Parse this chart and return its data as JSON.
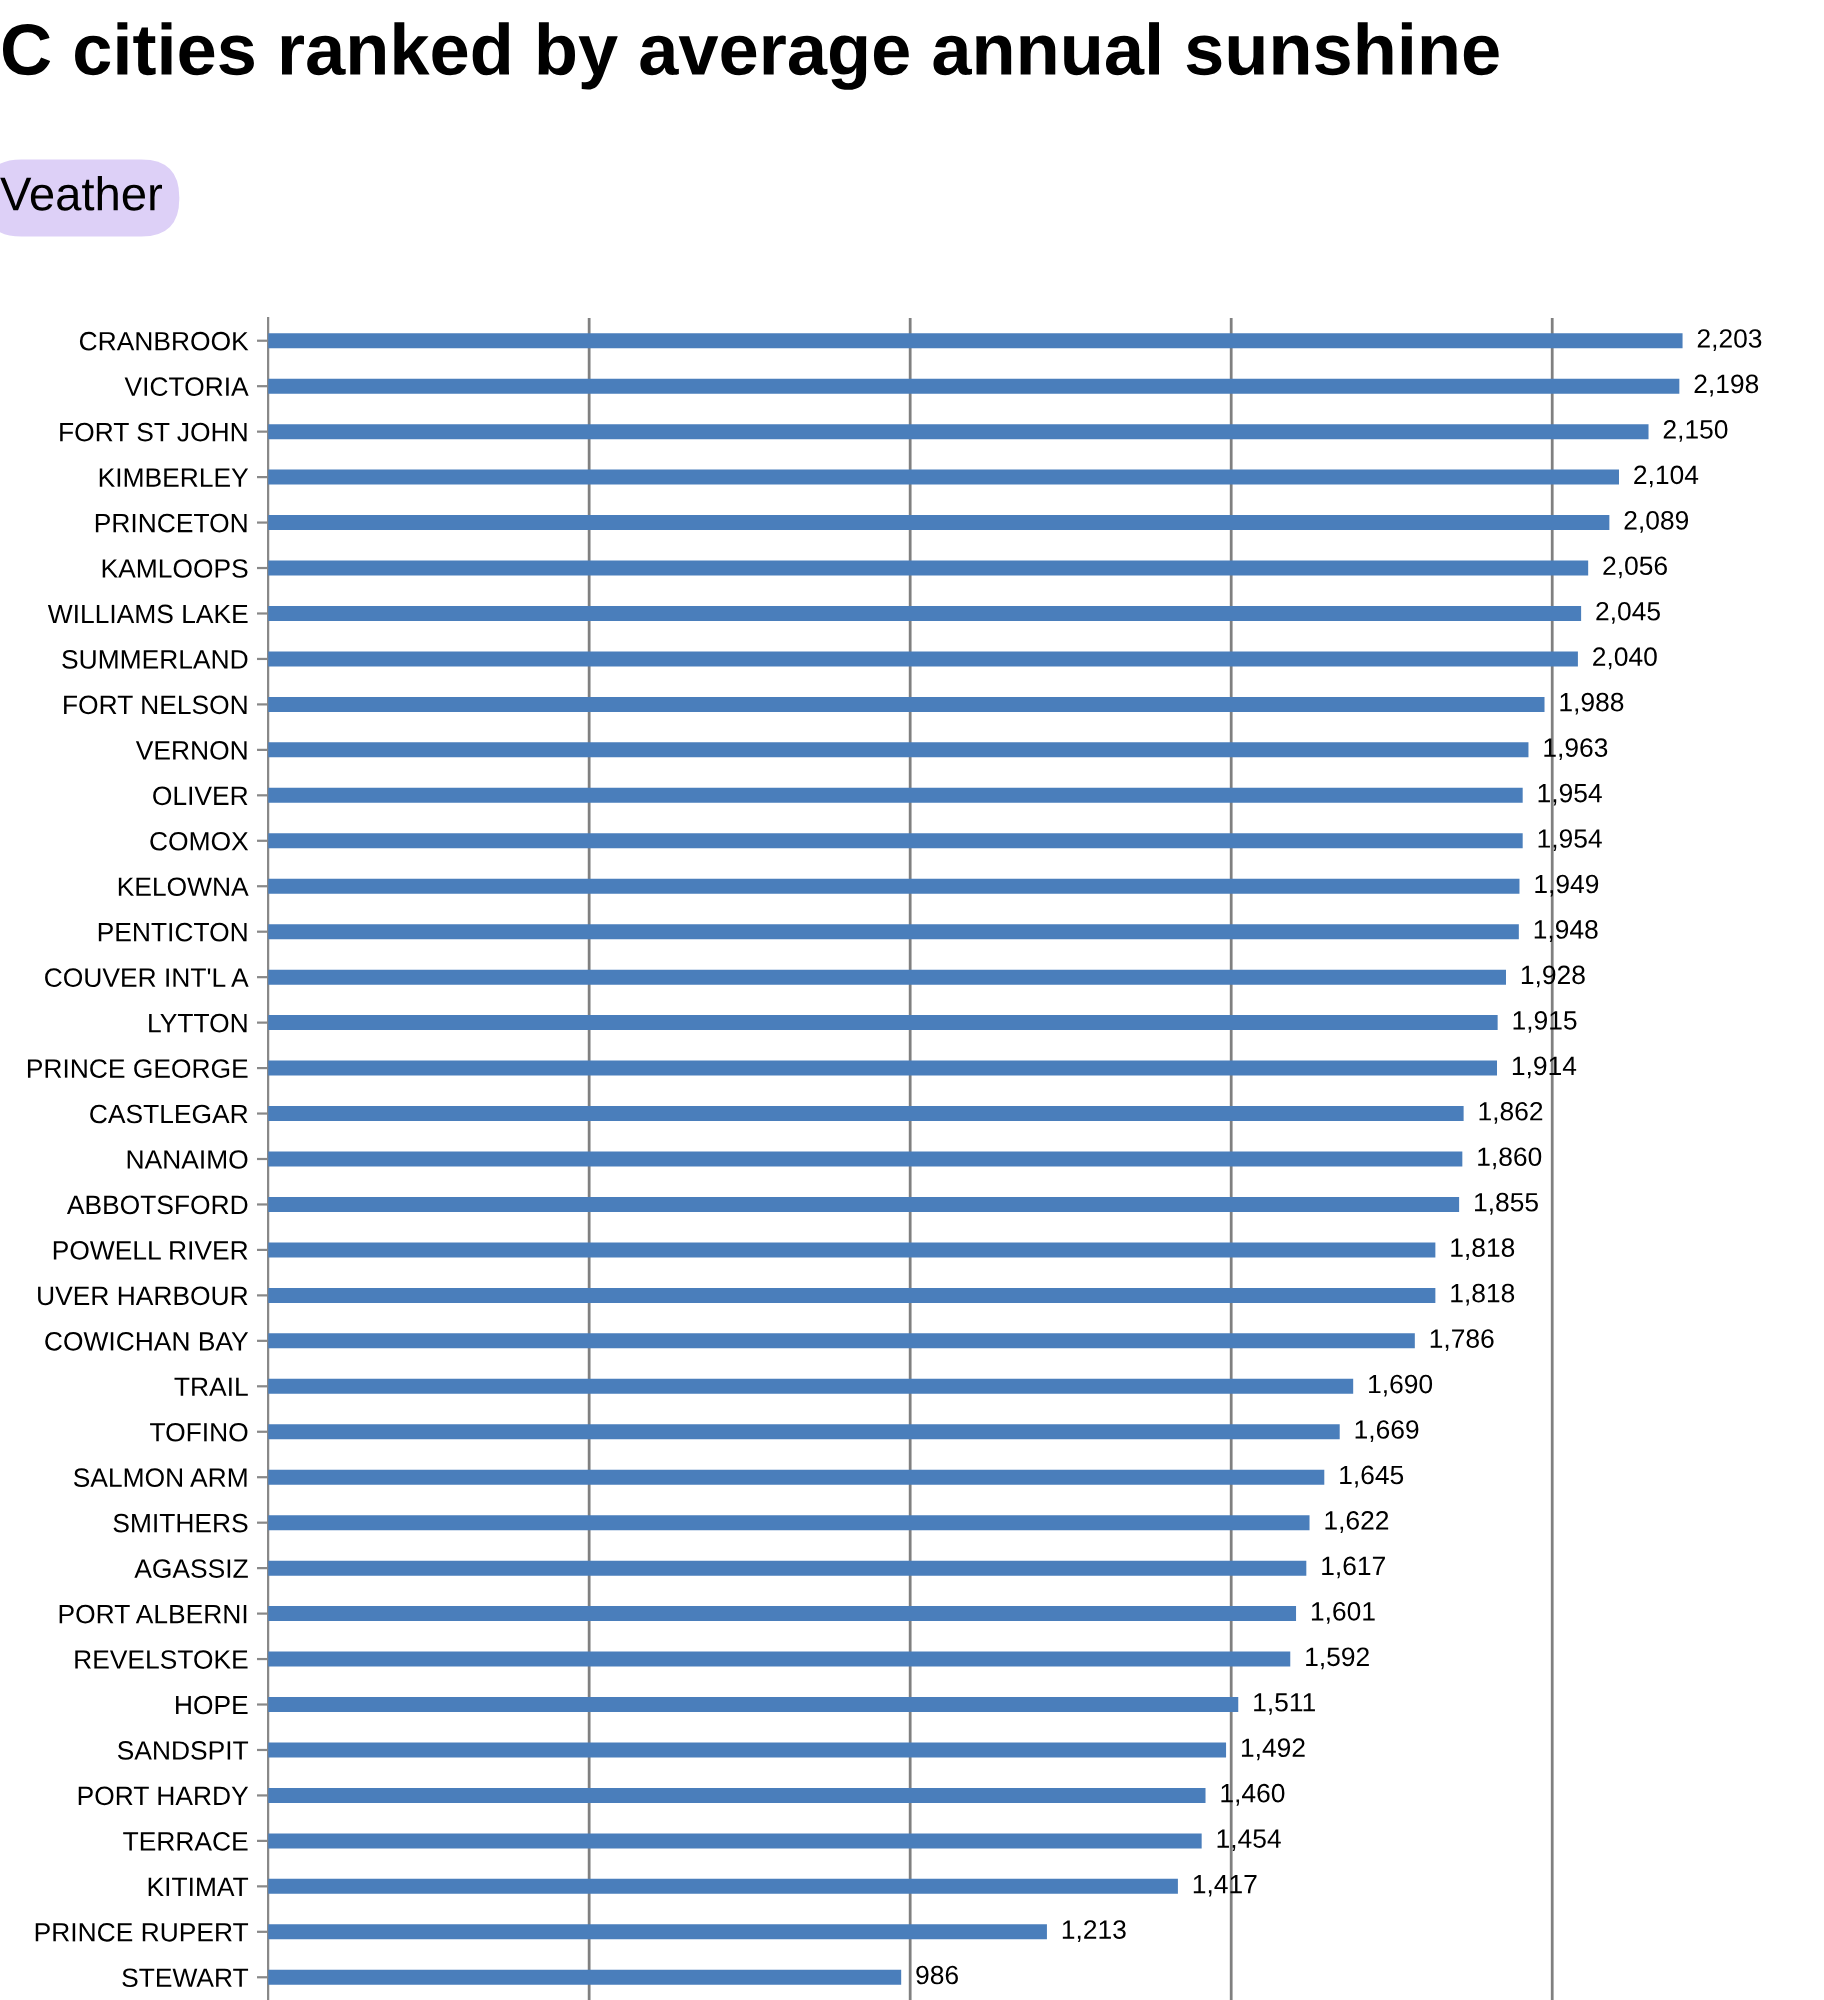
{
  "chart_data": {
    "type": "bar",
    "orientation": "horizontal",
    "title": "C cities ranked by average annual sunshine",
    "subtitle": "Veather",
    "categories": [
      "CRANBROOK",
      "VICTORIA",
      "FORT ST JOHN",
      "KIMBERLEY",
      "PRINCETON",
      "KAMLOOPS",
      "WILLIAMS LAKE",
      "SUMMERLAND",
      "FORT NELSON",
      "VERNON",
      "OLIVER",
      "COMOX",
      "KELOWNA",
      "PENTICTON",
      "COUVER INT'L A",
      "LYTTON",
      "PRINCE GEORGE",
      "CASTLEGAR",
      "NANAIMO",
      "ABBOTSFORD",
      "POWELL RIVER",
      "UVER HARBOUR",
      "COWICHAN BAY",
      "TRAIL",
      "TOFINO",
      "SALMON ARM",
      "SMITHERS",
      "AGASSIZ",
      "PORT ALBERNI",
      "REVELSTOKE",
      "HOPE",
      "SANDSPIT",
      "PORT HARDY",
      "TERRACE",
      "KITIMAT",
      "PRINCE RUPERT",
      "STEWART"
    ],
    "values": [
      2203,
      2198,
      2150,
      2104,
      2089,
      2056,
      2045,
      2040,
      1988,
      1963,
      1954,
      1954,
      1949,
      1948,
      1928,
      1915,
      1914,
      1862,
      1860,
      1855,
      1818,
      1818,
      1786,
      1690,
      1669,
      1645,
      1622,
      1617,
      1601,
      1592,
      1511,
      1492,
      1460,
      1454,
      1417,
      1213,
      986
    ],
    "value_labels": [
      "2,203",
      "2,198",
      "2,150",
      "2,104",
      "2,089",
      "2,056",
      "2,045",
      "2,040",
      "1,988",
      "1,963",
      "1,954",
      "1,954",
      "1,949",
      "1,948",
      "1,928",
      "1,915",
      "1,914",
      "1,862",
      "1,860",
      "1,855",
      "1,818",
      "1,818",
      "1,786",
      "1,690",
      "1,669",
      "1,645",
      "1,622",
      "1,617",
      "1,601",
      "1,592",
      "1,511",
      "1,492",
      "1,460",
      "1,454",
      "1,417",
      "1,213",
      "986"
    ],
    "color": "#4a7ebb",
    "xticks": [
      {
        "value": 500,
        "label": null
      },
      {
        "value": 1000,
        "label": null
      },
      {
        "value": 1500,
        "label": null
      },
      {
        "value": 2000,
        "label": null
      }
    ],
    "grid": "x",
    "tick_labels": "y",
    "legend": false
  }
}
